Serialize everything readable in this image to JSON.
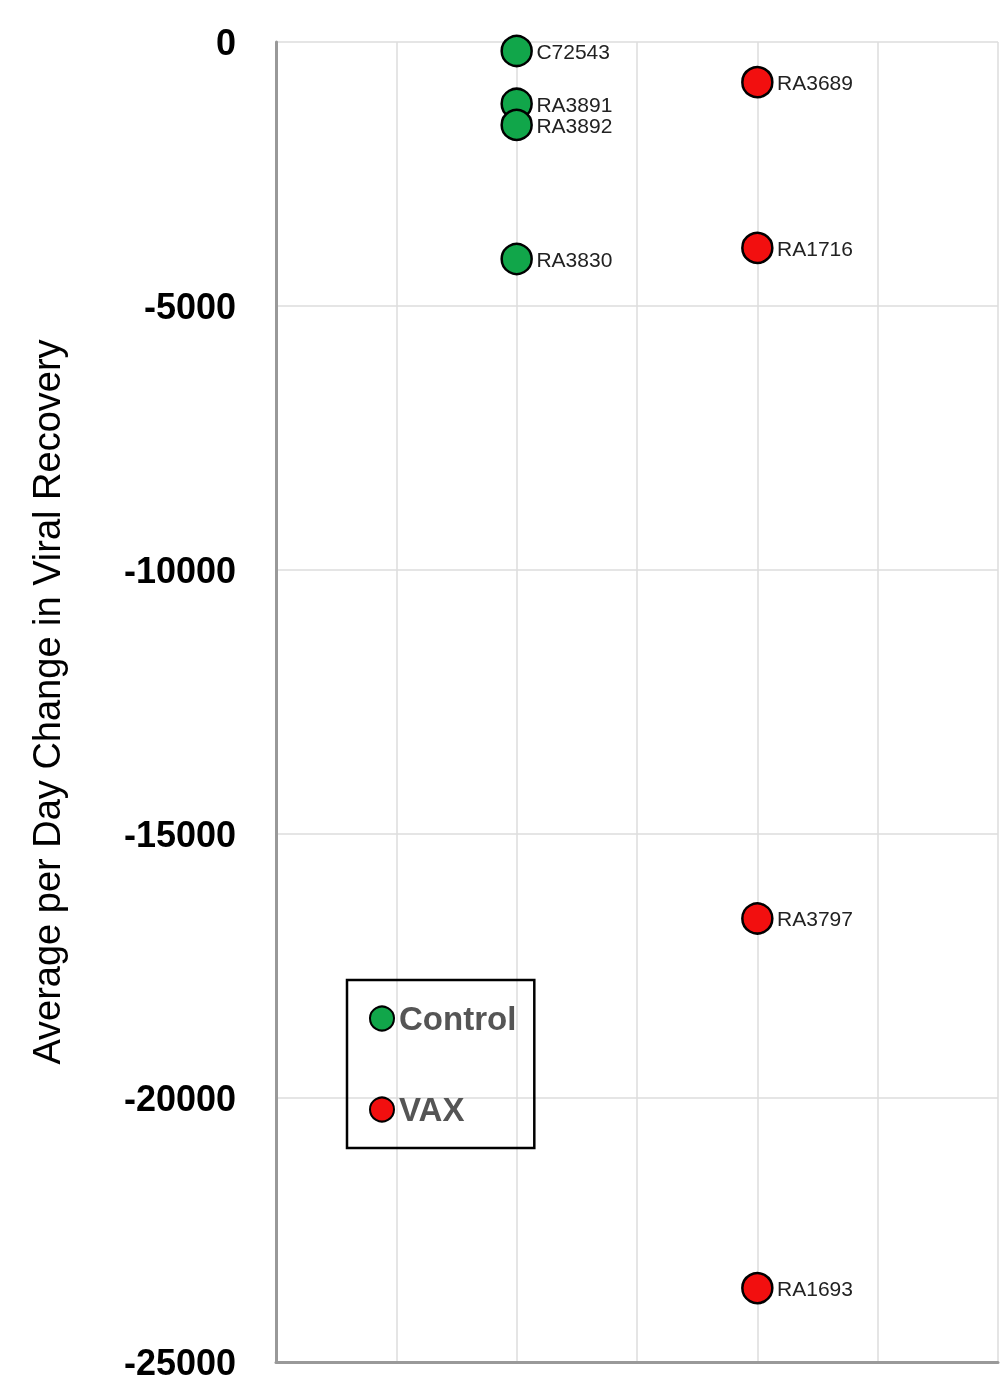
{
  "chart_data": {
    "type": "scatter",
    "ylabel": "Average per Day Change in Viral Recovery",
    "categories": [
      null,
      null,
      null,
      null,
      null,
      null,
      null
    ],
    "ylim": [
      -25000,
      0
    ],
    "yticks": [
      -25000,
      -20000,
      -15000,
      -10000,
      -5000,
      0
    ],
    "tick_labels": "y",
    "grid": true,
    "legend": "bottom left",
    "marker": "circle",
    "series": [
      {
        "name": "Control",
        "color": "#11a64a",
        "values": [
          null,
          null,
          -170,
          null,
          null,
          null,
          null
        ],
        "value_labels": [
          null,
          null,
          "C72543",
          null,
          null,
          null,
          null
        ]
      },
      {
        "color": "#11a64a",
        "values": [
          null,
          null,
          -1170,
          null,
          null,
          null,
          null
        ],
        "value_labels": [
          null,
          null,
          "RA3891",
          null,
          null,
          null,
          null
        ]
      },
      {
        "color": "#11a64a",
        "values": [
          null,
          null,
          -1570,
          null,
          null,
          null,
          null
        ],
        "value_labels": [
          null,
          null,
          "RA3892",
          null,
          null,
          null,
          null
        ]
      },
      {
        "color": "#11a64a",
        "values": [
          null,
          null,
          -4110,
          null,
          null,
          null,
          null
        ],
        "value_labels": [
          null,
          null,
          "RA3830",
          null,
          null,
          null,
          null
        ]
      },
      {
        "name": "VAX",
        "color": "#f20f0f",
        "values": [
          null,
          null,
          null,
          null,
          -760,
          null,
          null
        ],
        "value_labels": [
          null,
          null,
          null,
          null,
          "RA3689",
          null,
          null
        ]
      },
      {
        "color": "#f20f0f",
        "values": [
          null,
          null,
          null,
          null,
          -3900,
          null,
          null
        ],
        "value_labels": [
          null,
          null,
          null,
          null,
          "RA1716",
          null,
          null
        ]
      },
      {
        "color": "#f20f0f",
        "values": [
          null,
          null,
          null,
          null,
          -16600,
          null,
          null
        ],
        "value_labels": [
          null,
          null,
          null,
          null,
          "RA3797",
          null,
          null
        ]
      },
      {
        "color": "#f20f0f",
        "values": [
          null,
          null,
          null,
          null,
          -23600,
          null,
          null
        ],
        "value_labels": [
          null,
          null,
          null,
          null,
          "RA1693",
          null,
          null
        ]
      }
    ]
  }
}
